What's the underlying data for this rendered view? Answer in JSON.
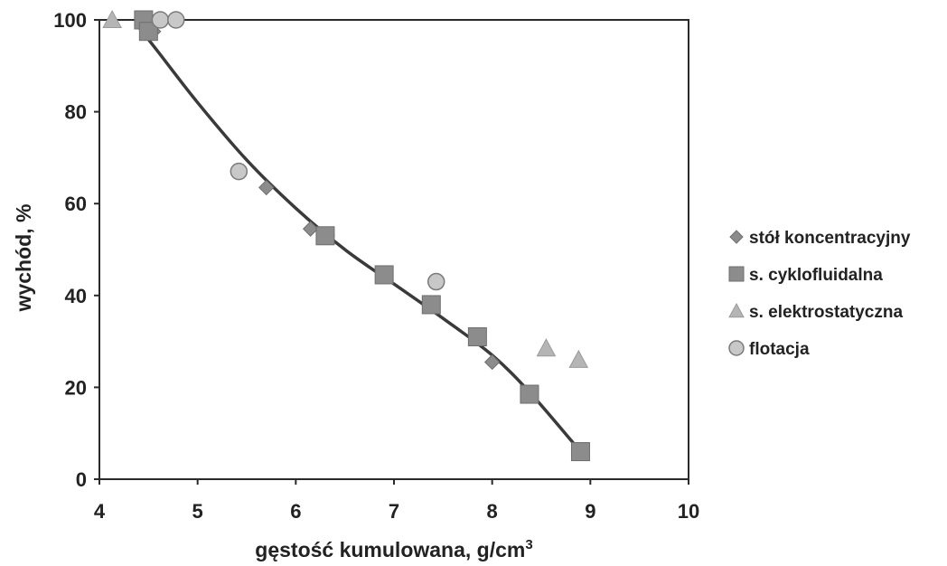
{
  "chart_data": {
    "type": "scatter",
    "title": "",
    "xlabel": "gęstość  kumulowana, g/cm",
    "xlabel_sup": "3",
    "ylabel": "wychód, %",
    "xlim": [
      4,
      10
    ],
    "ylim": [
      0,
      100
    ],
    "xticks": [
      4,
      5,
      6,
      7,
      8,
      9,
      10
    ],
    "yticks": [
      0,
      20,
      40,
      60,
      80,
      100
    ],
    "grid": false,
    "legend_position": "right",
    "series": [
      {
        "name": "stół koncentracyjny",
        "marker": "diamond",
        "color": "#8c8c8c",
        "points": [
          [
            4.5,
            98.5
          ],
          [
            4.55,
            97.5
          ],
          [
            5.7,
            63.5
          ],
          [
            6.15,
            54.5
          ],
          [
            6.32,
            53
          ],
          [
            8.0,
            25.5
          ]
        ]
      },
      {
        "name": "s. cyklofluidalna",
        "marker": "square",
        "color": "#8c8c8c",
        "points": [
          [
            4.45,
            100
          ],
          [
            4.5,
            97.5
          ],
          [
            6.3,
            53
          ],
          [
            6.9,
            44.5
          ],
          [
            7.38,
            38
          ],
          [
            7.85,
            31
          ],
          [
            8.38,
            18.5
          ],
          [
            8.9,
            6
          ]
        ]
      },
      {
        "name": "s. elektrostatyczna",
        "marker": "triangle",
        "color": "#b5b5b5",
        "points": [
          [
            4.13,
            100
          ],
          [
            8.55,
            28.5
          ],
          [
            8.88,
            26
          ]
        ]
      },
      {
        "name": "flotacja",
        "marker": "circle",
        "color": "#c8c8c8",
        "points": [
          [
            4.62,
            100
          ],
          [
            4.78,
            100
          ],
          [
            5.42,
            67
          ],
          [
            7.43,
            43
          ]
        ]
      }
    ],
    "trendline": {
      "color": "#3a3a3a",
      "points": [
        [
          4.38,
          99
        ],
        [
          4.6,
          93
        ],
        [
          5.0,
          82
        ],
        [
          5.5,
          69.5
        ],
        [
          6.0,
          59
        ],
        [
          6.5,
          50
        ],
        [
          7.0,
          42.5
        ],
        [
          7.5,
          35
        ],
        [
          8.0,
          27
        ],
        [
          8.4,
          18.5
        ],
        [
          8.9,
          6
        ]
      ]
    }
  }
}
